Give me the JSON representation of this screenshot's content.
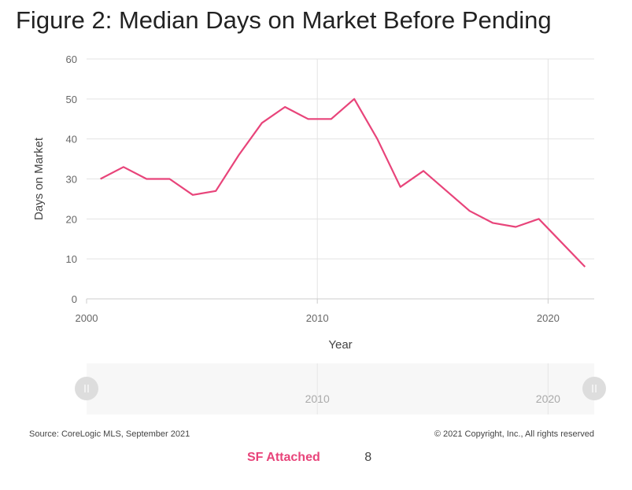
{
  "title": "Figure 2: Median Days on Market Before Pending",
  "chart_data": {
    "type": "line",
    "xlabel": "Year",
    "ylabel": "Days on Market",
    "xlim": [
      2000,
      2022
    ],
    "ylim": [
      0,
      60
    ],
    "x_ticks": [
      "2000",
      "2010",
      "2020"
    ],
    "y_ticks": [
      "0",
      "10",
      "20",
      "30",
      "40",
      "50",
      "60"
    ],
    "grid": true,
    "series": [
      {
        "name": "SF Attached",
        "color": "#e8447a",
        "x": [
          2000.6,
          2001.6,
          2002.6,
          2003.6,
          2004.6,
          2005.6,
          2006.6,
          2007.6,
          2008.6,
          2009.6,
          2010.6,
          2011.6,
          2012.6,
          2013.6,
          2014.6,
          2015.6,
          2016.6,
          2017.6,
          2018.6,
          2019.6,
          2020.6,
          2021.6
        ],
        "values": [
          30,
          33,
          30,
          30,
          26,
          27,
          36,
          44,
          48,
          45,
          45,
          50,
          40,
          28,
          32,
          27,
          22,
          19,
          18,
          20,
          14,
          8
        ]
      }
    ]
  },
  "navigator": {
    "labels": [
      "2010",
      "2020"
    ]
  },
  "footer": {
    "source": "Source: CoreLogic MLS, September 2021",
    "copyright": "© 2021 Copyright, Inc., All rights reserved"
  },
  "tooltip": {
    "series_name": "SF Attached",
    "value": "8"
  }
}
